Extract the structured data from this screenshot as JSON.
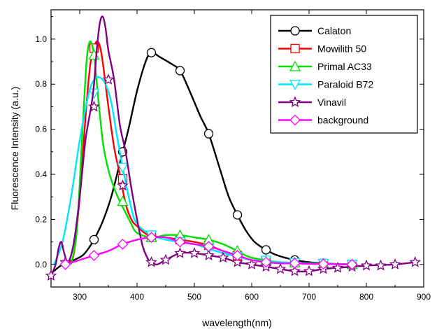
{
  "chart_data": {
    "type": "line",
    "title": "",
    "xlabel": "wavelength(nm)",
    "ylabel": "Fluorescence Intensity (a.u.)",
    "xlim": [
      250,
      900
    ],
    "ylim": [
      -0.1,
      1.13
    ],
    "xticks": [
      "300",
      "400",
      "500",
      "600",
      "700",
      "800",
      "900"
    ],
    "yticks": [
      "0.0",
      "0.2",
      "0.4",
      "0.6",
      "0.8",
      "1.0"
    ],
    "legend_position": "top-right",
    "grid": false,
    "series": [
      {
        "name": "Calaton",
        "color": "#000000",
        "marker": "circle",
        "x": [
          250,
          270,
          290,
          305,
          315,
          325,
          340,
          355,
          370,
          385,
          400,
          415,
          425,
          440,
          460,
          475,
          490,
          510,
          525,
          545,
          560,
          575,
          590,
          605,
          625,
          645,
          675,
          700,
          725,
          750,
          775
        ],
        "y": [
          -0.04,
          0.0,
          0.02,
          0.04,
          0.07,
          0.11,
          0.19,
          0.3,
          0.45,
          0.6,
          0.77,
          0.9,
          0.94,
          0.92,
          0.89,
          0.86,
          0.78,
          0.66,
          0.58,
          0.42,
          0.3,
          0.22,
          0.15,
          0.1,
          0.065,
          0.04,
          0.02,
          0.01,
          0.005,
          0.002,
          0.0
        ],
        "marker_x": [
          325,
          375,
          425,
          475,
          525,
          575,
          625,
          675,
          725,
          775
        ],
        "marker_y": [
          0.11,
          0.5,
          0.94,
          0.86,
          0.58,
          0.22,
          0.065,
          0.02,
          0.005,
          0.0
        ]
      },
      {
        "name": "Mowilith 50",
        "color": "#ff0000",
        "marker": "square",
        "x": [
          280,
          290,
          300,
          310,
          318,
          325,
          330,
          335,
          340,
          350,
          360,
          370,
          380,
          390,
          400,
          420,
          450,
          475,
          500,
          525,
          550,
          575,
          600,
          650,
          700,
          775
        ],
        "y": [
          0.01,
          0.05,
          0.3,
          0.65,
          0.88,
          0.96,
          0.99,
          0.97,
          0.9,
          0.7,
          0.52,
          0.4,
          0.27,
          0.2,
          0.17,
          0.13,
          0.12,
          0.11,
          0.1,
          0.085,
          0.06,
          0.04,
          0.02,
          0.01,
          0.005,
          0.0
        ],
        "marker_x": [
          325,
          375,
          425,
          475,
          525,
          575,
          625,
          675,
          725,
          775
        ],
        "marker_y": [
          0.96,
          0.38,
          0.12,
          0.11,
          0.085,
          0.04,
          0.015,
          0.008,
          0.004,
          0.0
        ]
      },
      {
        "name": "Primal AC33",
        "color": "#00e000",
        "marker": "triangle-up",
        "x": [
          285,
          295,
          305,
          312,
          318,
          325,
          330,
          340,
          350,
          360,
          370,
          380,
          390,
          400,
          425,
          450,
          475,
          500,
          525,
          550,
          575,
          600,
          650,
          700,
          775
        ],
        "y": [
          0.0,
          0.15,
          0.6,
          0.9,
          0.99,
          0.93,
          0.8,
          0.55,
          0.42,
          0.34,
          0.28,
          0.23,
          0.18,
          0.14,
          0.12,
          0.13,
          0.13,
          0.12,
          0.11,
          0.09,
          0.06,
          0.03,
          0.01,
          0.005,
          0.0
        ],
        "marker_x": [
          325,
          375,
          425,
          475,
          525,
          575,
          625,
          675,
          725,
          775
        ],
        "marker_y": [
          0.93,
          0.28,
          0.12,
          0.13,
          0.11,
          0.06,
          0.02,
          0.008,
          0.004,
          0.0
        ]
      },
      {
        "name": "Paraloid B72",
        "color": "#00e5ff",
        "marker": "triangle-down",
        "x": [
          255,
          270,
          285,
          300,
          315,
          325,
          335,
          345,
          355,
          365,
          375,
          390,
          400,
          425,
          450,
          475,
          500,
          525,
          550,
          575,
          600,
          650,
          700,
          775
        ],
        "y": [
          0.0,
          0.1,
          0.3,
          0.55,
          0.75,
          0.82,
          0.83,
          0.8,
          0.72,
          0.57,
          0.43,
          0.25,
          0.18,
          0.13,
          0.11,
          0.1,
          0.09,
          0.07,
          0.05,
          0.035,
          0.02,
          0.01,
          0.005,
          0.0
        ],
        "marker_x": [
          325,
          375,
          425,
          475,
          525,
          575,
          625,
          675,
          725,
          775
        ],
        "marker_y": [
          0.76,
          0.43,
          0.13,
          0.1,
          0.07,
          0.035,
          0.018,
          0.008,
          0.004,
          0.0
        ]
      },
      {
        "name": "Vinavil",
        "color": "#800080",
        "marker": "star",
        "x": [
          250,
          258,
          263,
          268,
          273,
          280,
          290,
          300,
          310,
          320,
          325,
          330,
          335,
          340,
          345,
          350,
          360,
          370,
          380,
          390,
          400,
          410,
          420,
          425,
          435,
          450,
          475,
          500,
          525,
          550,
          575,
          600,
          625,
          650,
          675,
          700,
          725,
          750,
          775,
          800,
          850,
          885
        ],
        "y": [
          -0.05,
          0.0,
          0.07,
          0.1,
          0.05,
          0.01,
          0.1,
          0.3,
          0.55,
          0.7,
          0.8,
          0.96,
          1.07,
          1.1,
          1.05,
          0.95,
          0.82,
          0.62,
          0.5,
          0.34,
          0.2,
          0.08,
          0.02,
          0.01,
          0.0,
          0.02,
          0.05,
          0.05,
          0.04,
          0.03,
          0.01,
          0.0,
          -0.01,
          -0.02,
          -0.03,
          -0.03,
          -0.02,
          -0.015,
          -0.01,
          -0.005,
          0.0,
          0.01
        ],
        "marker_x": [
          250,
          275,
          325,
          350,
          375,
          425,
          450,
          475,
          500,
          525,
          550,
          575,
          600,
          625,
          650,
          675,
          700,
          725,
          750,
          775,
          800,
          825,
          850,
          885
        ],
        "marker_y": [
          -0.05,
          0.01,
          0.7,
          0.82,
          0.35,
          0.01,
          0.02,
          0.05,
          0.05,
          0.04,
          0.03,
          0.01,
          0.0,
          -0.01,
          -0.02,
          -0.03,
          -0.03,
          -0.02,
          -0.015,
          -0.01,
          -0.005,
          -0.005,
          0.0,
          0.01
        ]
      },
      {
        "name": "background",
        "color": "#ff00ff",
        "marker": "diamond",
        "x": [
          275,
          300,
          325,
          350,
          375,
          400,
          425,
          450,
          475,
          500,
          525,
          550,
          575,
          600,
          625,
          650,
          675,
          700,
          725,
          750,
          775
        ],
        "y": [
          0.0,
          0.02,
          0.04,
          0.06,
          0.09,
          0.11,
          0.12,
          0.12,
          0.1,
          0.09,
          0.08,
          0.06,
          0.04,
          0.02,
          0.01,
          0.005,
          0.005,
          0.003,
          0.002,
          0.001,
          0.0
        ],
        "marker_x": [
          275,
          325,
          375,
          425,
          475,
          525,
          575,
          625,
          675,
          725,
          775
        ],
        "marker_y": [
          0.0,
          0.04,
          0.09,
          0.12,
          0.1,
          0.08,
          0.04,
          0.01,
          0.005,
          0.002,
          0.0
        ]
      }
    ]
  }
}
